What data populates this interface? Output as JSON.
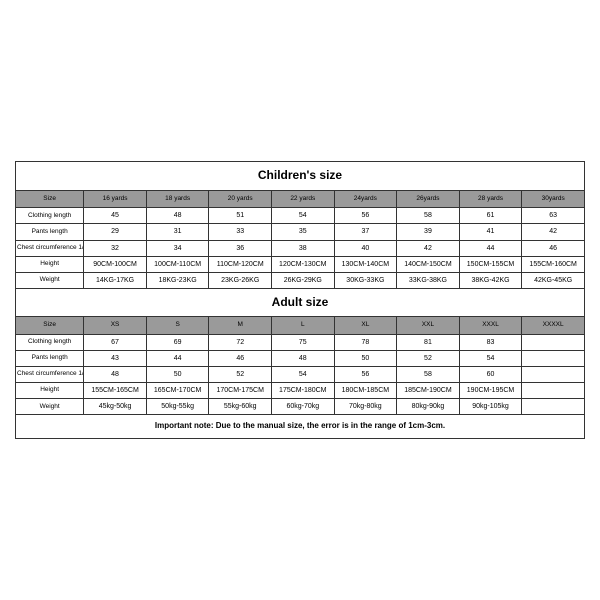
{
  "children": {
    "title": "Children's size",
    "headers": [
      "Size",
      "16 yards",
      "18 yards",
      "20 yards",
      "22 yards",
      "24yards",
      "26yards",
      "28 yards",
      "30yards"
    ],
    "rows": [
      {
        "label": "Clothing length",
        "cells": [
          "45",
          "48",
          "51",
          "54",
          "56",
          "58",
          "61",
          "63"
        ]
      },
      {
        "label": "Pants length",
        "cells": [
          "29",
          "31",
          "33",
          "35",
          "37",
          "39",
          "41",
          "42"
        ]
      },
      {
        "label": "Chest circumference 1/2",
        "cells": [
          "32",
          "34",
          "36",
          "38",
          "40",
          "42",
          "44",
          "46"
        ]
      },
      {
        "label": "Height",
        "cells": [
          "90CM-100CM",
          "100CM-110CM",
          "110CM-120CM",
          "120CM-130CM",
          "130CM-140CM",
          "140CM-150CM",
          "150CM-155CM",
          "155CM-160CM"
        ]
      },
      {
        "label": "Weight",
        "cells": [
          "14KG-17KG",
          "18KG-23KG",
          "23KG-26KG",
          "26KG-29KG",
          "30KG-33KG",
          "33KG-38KG",
          "38KG-42KG",
          "42KG-45KG"
        ]
      }
    ]
  },
  "adult": {
    "title": "Adult size",
    "headers": [
      "Size",
      "XS",
      "S",
      "M",
      "L",
      "XL",
      "XXL",
      "XXXL",
      "XXXXL"
    ],
    "rows": [
      {
        "label": "Clothing length",
        "cells": [
          "67",
          "69",
          "72",
          "75",
          "78",
          "81",
          "83",
          ""
        ]
      },
      {
        "label": "Pants length",
        "cells": [
          "43",
          "44",
          "46",
          "48",
          "50",
          "52",
          "54",
          ""
        ]
      },
      {
        "label": "Chest circumference 1/2",
        "cells": [
          "48",
          "50",
          "52",
          "54",
          "56",
          "58",
          "60",
          ""
        ]
      },
      {
        "label": "Height",
        "cells": [
          "155CM-165CM",
          "165CM-170CM",
          "170CM-175CM",
          "175CM-180CM",
          "180CM-185CM",
          "185CM-190CM",
          "190CM-195CM",
          ""
        ]
      },
      {
        "label": "Weight",
        "cells": [
          "45kg-50kg",
          "50kg-55kg",
          "55kg-60kg",
          "60kg-70kg",
          "70kg-80kg",
          "80kg-90kg",
          "90kg-105kg",
          ""
        ]
      }
    ]
  },
  "note": "Important note: Due to the manual size, the error is in the range of 1cm-3cm.",
  "colors": {
    "header_bg": "#9a9a9a",
    "border": "#333333",
    "text": "#000000",
    "bg": "#ffffff"
  }
}
